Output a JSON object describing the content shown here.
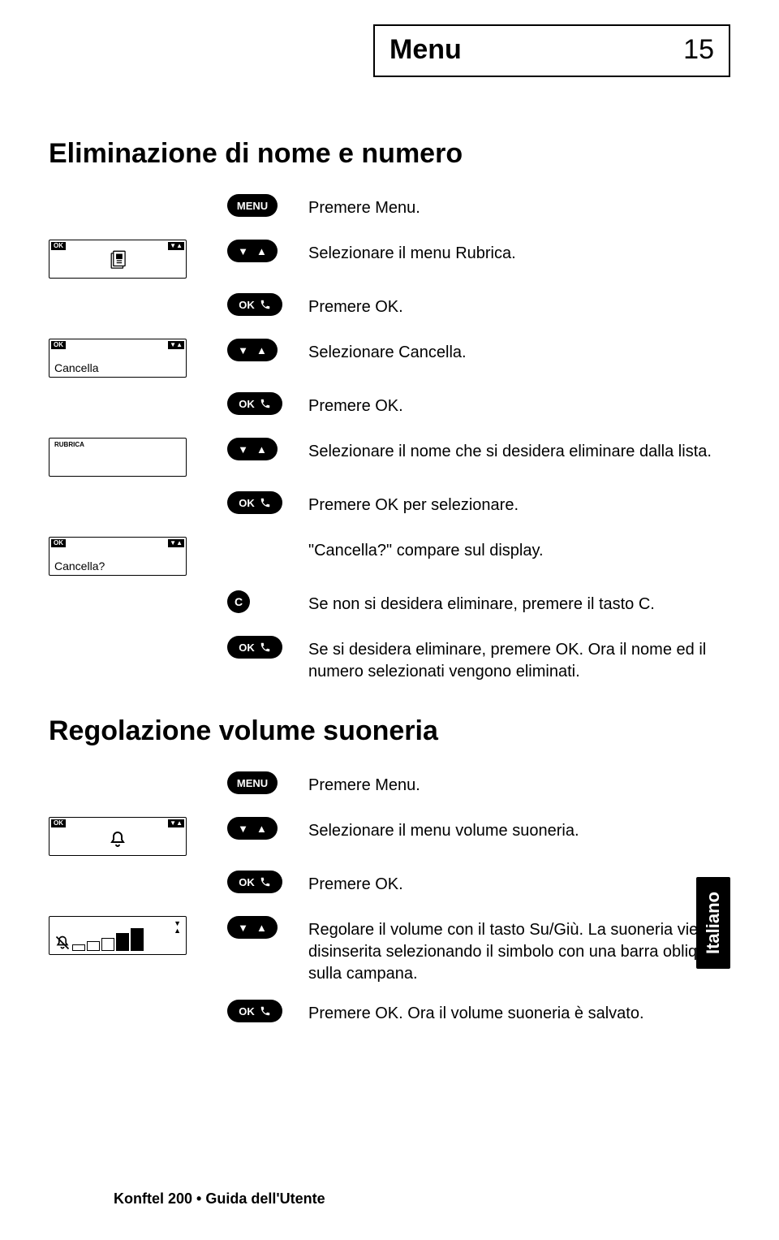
{
  "header": {
    "title": "Menu",
    "page": "15"
  },
  "section1": {
    "title": "Eliminazione di nome e numero",
    "steps": [
      {
        "btn": "menu",
        "label": "MENU",
        "desc": "Premere Menu."
      },
      {
        "lcd": "phonebook",
        "btn": "updown",
        "desc": "Selezionare il menu Rubrica."
      },
      {
        "btn": "okcall",
        "ok": "OK",
        "desc": "Premere OK."
      },
      {
        "lcd": "text",
        "lcd_text": "Cancella",
        "btn": "updown",
        "desc": "Selezionare Cancella."
      },
      {
        "btn": "okcall",
        "ok": "OK",
        "desc": "Premere OK."
      },
      {
        "lcd": "tinytext",
        "lcd_text": "RUBRICA",
        "btn": "updown",
        "desc": "Selezionare il nome che si desidera eliminare dalla lista."
      },
      {
        "btn": "okcall",
        "ok": "OK",
        "desc": "Premere OK per selezionare."
      },
      {
        "lcd": "text",
        "lcd_text": "Cancella?",
        "desc": "\"Cancella?\" compare sul display."
      },
      {
        "btn": "c",
        "label": "C",
        "desc": "Se non si desidera eliminare, premere il tasto C."
      },
      {
        "btn": "okcall",
        "ok": "OK",
        "desc": "Se si desidera eliminare, premere OK. Ora il nome ed il numero selezionati vengono eliminati."
      }
    ]
  },
  "section2": {
    "title": "Regolazione volume suoneria",
    "steps": [
      {
        "btn": "menu",
        "label": "MENU",
        "desc": "Premere Menu."
      },
      {
        "lcd": "bell",
        "btn": "updown",
        "desc": "Selezionare il menu volume suoneria."
      },
      {
        "btn": "okcall",
        "ok": "OK",
        "desc": "Premere OK."
      },
      {
        "lcd": "volume",
        "btn": "updown",
        "desc": "Regolare il volume con il tasto Su/Giù. La suoneria viene disinserita selezionando il simbolo con una barra obliqua sulla campana."
      },
      {
        "btn": "okcall",
        "ok": "OK",
        "desc": "Premere OK. Ora il volume suoneria è salvato."
      }
    ]
  },
  "side_tab": "Italiano",
  "footer": "Konftel 200 • Guida dell'Utente",
  "lcd_labels": {
    "ok": "OK",
    "arrows": "▼▲"
  },
  "colors": {
    "text": "#000000",
    "bg": "#ffffff",
    "button_bg": "#000000",
    "button_fg": "#ffffff"
  }
}
